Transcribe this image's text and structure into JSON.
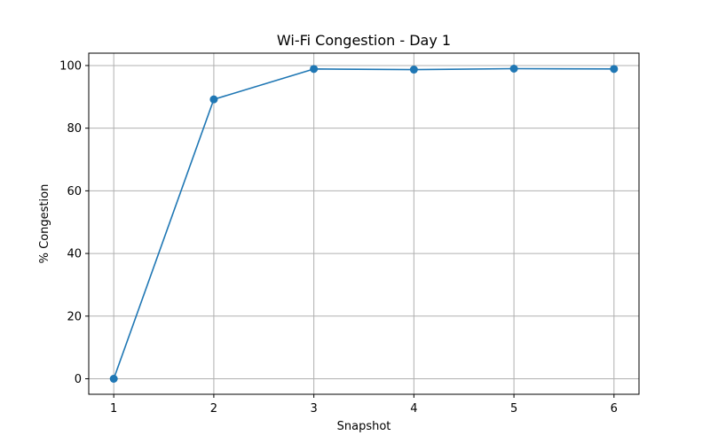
{
  "chart_data": {
    "type": "line",
    "title": "Wi-Fi Congestion - Day 1",
    "xlabel": "Snapshot",
    "ylabel": "% Congestion",
    "x": [
      1,
      2,
      3,
      4,
      5,
      6
    ],
    "series": [
      {
        "values": [
          0,
          89.2,
          98.9,
          98.7,
          99.0,
          98.9
        ],
        "color": "#1f77b4",
        "marker": "circle"
      }
    ],
    "xticks": [
      "1",
      "2",
      "3",
      "4",
      "5",
      "6"
    ],
    "yticks": [
      "0",
      "20",
      "40",
      "60",
      "80",
      "100"
    ],
    "xlim": [
      0.75,
      6.25
    ],
    "ylim": [
      -4.95,
      103.95
    ],
    "grid": true,
    "legend": "none"
  }
}
